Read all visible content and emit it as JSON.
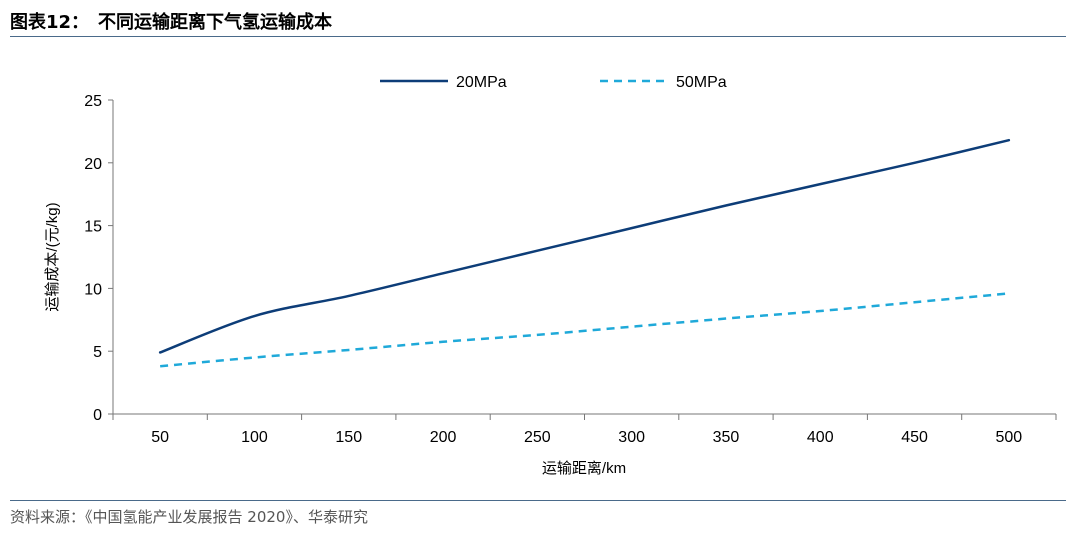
{
  "header": {
    "title": "图表12：　不同运输距离下气氢运输成本"
  },
  "footer": {
    "source": "资料来源：《中国氢能产业发展报告 2020》、华泰研究"
  },
  "chart_data": {
    "type": "line",
    "title": "",
    "xlabel": "运输距离/km",
    "ylabel": "运输成本/(元/kg)",
    "categories": [
      "50",
      "100",
      "150",
      "200",
      "250",
      "300",
      "350",
      "400",
      "450",
      "500"
    ],
    "x": [
      50,
      100,
      150,
      200,
      250,
      300,
      350,
      400,
      450,
      500
    ],
    "ylim": [
      0,
      25
    ],
    "yticks": [
      0,
      5,
      10,
      15,
      20,
      25
    ],
    "legend_position": "top",
    "series": [
      {
        "name": "20MPa",
        "color": "#0d3d78",
        "style": "solid",
        "values": [
          4.9,
          7.8,
          9.4,
          11.2,
          13.0,
          14.8,
          16.6,
          18.3,
          20.0,
          21.8
        ]
      },
      {
        "name": "50MPa",
        "color": "#1fa9d9",
        "style": "dashed",
        "values": [
          3.8,
          4.5,
          5.1,
          5.75,
          6.3,
          6.95,
          7.6,
          8.2,
          8.9,
          9.6
        ]
      }
    ]
  }
}
